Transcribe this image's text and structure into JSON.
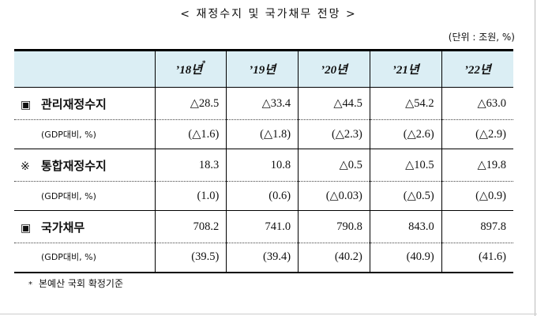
{
  "title": "< 재정수지 및 국가채무 전망 >",
  "unit_note": "(단위 : 조원, %)",
  "years": [
    {
      "label": "’18년",
      "mark": "*"
    },
    {
      "label": "’19년",
      "mark": ""
    },
    {
      "label": "’20년",
      "mark": ""
    },
    {
      "label": "’21년",
      "mark": ""
    },
    {
      "label": "’22년",
      "mark": ""
    }
  ],
  "rows": [
    {
      "bullet": "▣",
      "label": "관리재정수지",
      "values": [
        "△28.5",
        "△33.4",
        "△44.5",
        "△54.2",
        "△63.0"
      ]
    },
    {
      "label": "(GDP대비, %)",
      "values": [
        "(△1.6)",
        "(△1.8)",
        "(△2.3)",
        "(△2.6)",
        "(△2.9)"
      ]
    },
    {
      "bullet": "※",
      "label": "통합재정수지",
      "values": [
        "18.3",
        "10.8",
        "△0.5",
        "△10.5",
        "△19.8"
      ]
    },
    {
      "label": "(GDP대비, %)",
      "values": [
        "(1.0)",
        "(0.6)",
        "(△0.03)",
        "(△0.5)",
        "(△0.9)"
      ]
    },
    {
      "bullet": "▣",
      "label": "국가채무",
      "values": [
        "708.2",
        "741.0",
        "790.8",
        "843.0",
        "897.8"
      ]
    },
    {
      "label": "(GDP대비, %)",
      "values": [
        "(39.5)",
        "(39.4)",
        "(40.2)",
        "(40.9)",
        "(41.6)"
      ]
    }
  ],
  "footnote": {
    "mark": "*",
    "text": "본예산 국회 확정기준"
  }
}
